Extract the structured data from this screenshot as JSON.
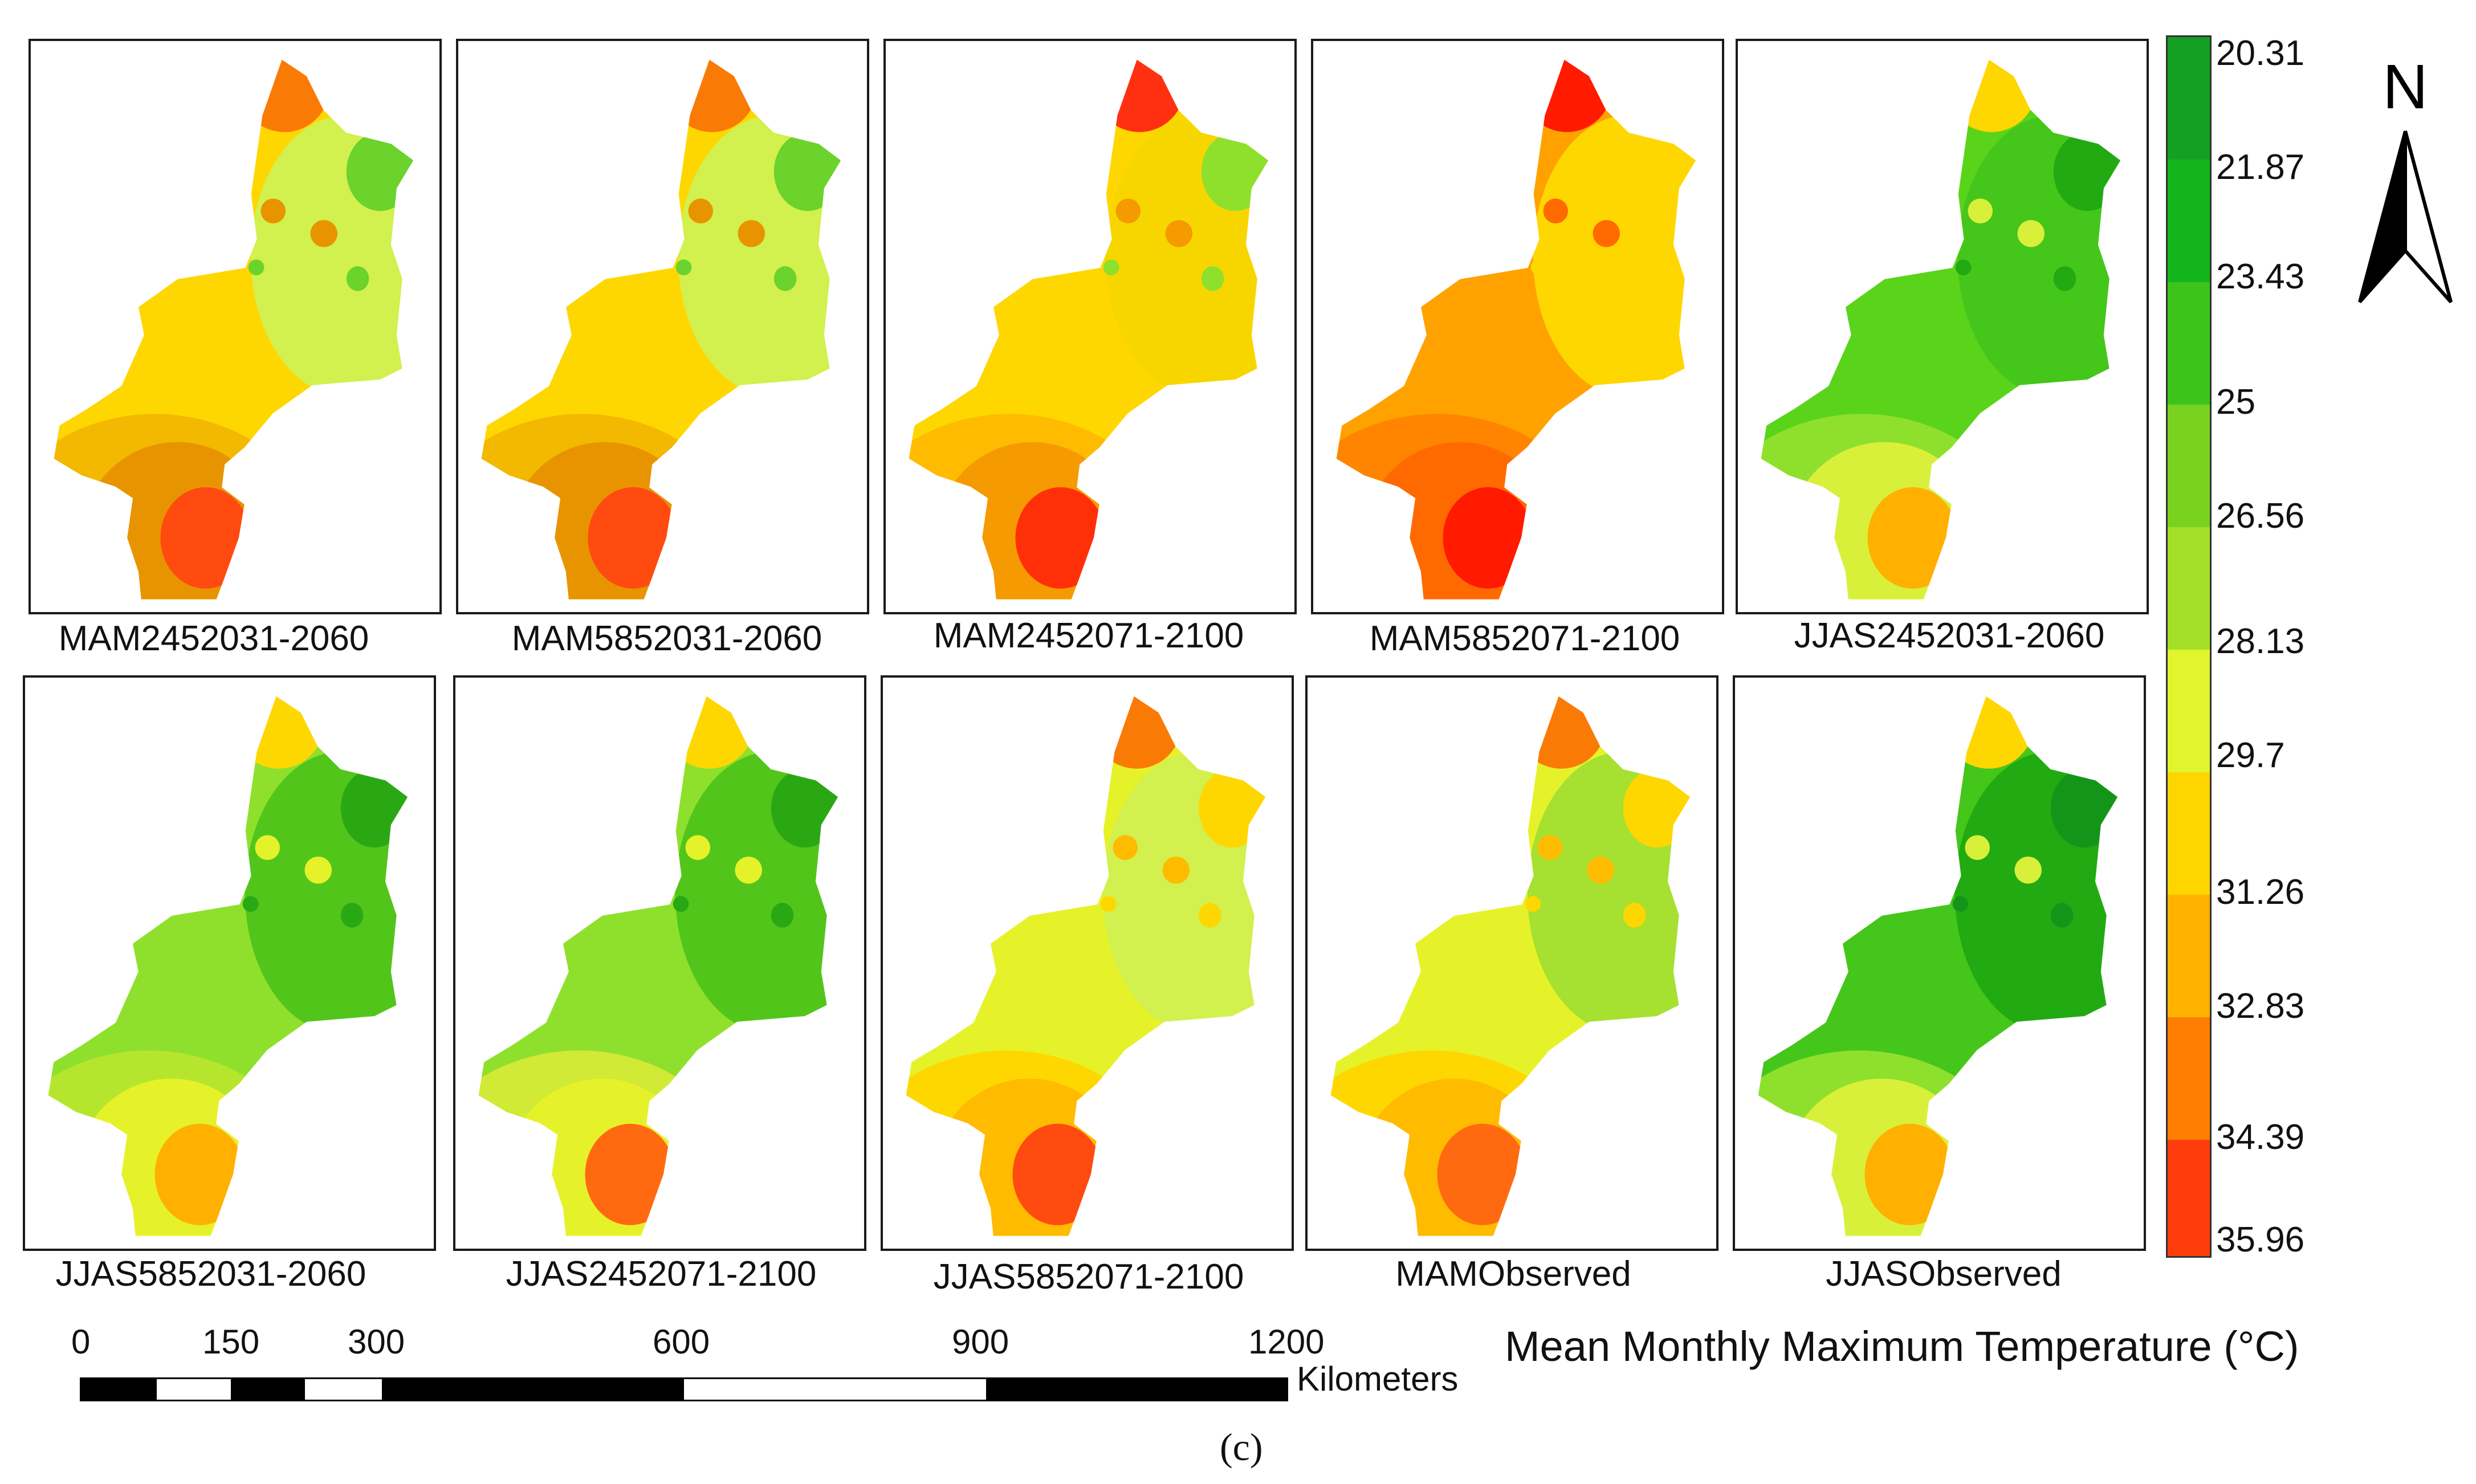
{
  "panels": [
    {
      "label": "MAM2452031-2060",
      "zones": [
        "#ffd700",
        "#f3b800",
        "#e89400",
        "#ff4a10",
        "#fa7a06",
        "#d2f04e",
        "#6cd22c"
      ]
    },
    {
      "label": "MAM5852031-2060",
      "zones": [
        "#ffd700",
        "#f3b800",
        "#e89400",
        "#ff4a10",
        "#fa7a06",
        "#d2f04e",
        "#6cd22c"
      ]
    },
    {
      "label": "MAM2452071-2100",
      "zones": [
        "#ffd700",
        "#ffbb00",
        "#f59a00",
        "#ff3008",
        "#ff3010",
        "#f7d600",
        "#8fe02d"
      ]
    },
    {
      "label": "MAM5852071-2100",
      "zones": [
        "#ffa200",
        "#ff8500",
        "#ff6a00",
        "#ff1a00",
        "#ff1a00",
        "#ffd700",
        "#ffd700"
      ]
    },
    {
      "label": "JJAS2452031-2060",
      "zones": [
        "#5ad41a",
        "#8fe02d",
        "#d9f03a",
        "#ffb000",
        "#ffd700",
        "#45c61a",
        "#22aa12"
      ]
    },
    {
      "label": "JJAS5852031-2060",
      "zones": [
        "#8fe02d",
        "#b5e62d",
        "#e6f229",
        "#ffb000",
        "#ffd700",
        "#52c51b",
        "#2aa814"
      ]
    },
    {
      "label": "JJAS2452071-2100",
      "zones": [
        "#8fe02d",
        "#d0ea35",
        "#e6f229",
        "#ff6a10",
        "#ffd700",
        "#52c51b",
        "#2aa814"
      ]
    },
    {
      "label": "JJAS5852071-2100",
      "zones": [
        "#e6f229",
        "#ffd700",
        "#ffbb00",
        "#ff4a10",
        "#fa7a06",
        "#d2f04e",
        "#ffd700"
      ]
    },
    {
      "label": "MAMObserved",
      "zones": [
        "#e6f229",
        "#ffd700",
        "#ffbb00",
        "#ff6a10",
        "#fa7a06",
        "#a6e030",
        "#ffd700"
      ]
    },
    {
      "label": "JJASObserved",
      "zones": [
        "#45c61a",
        "#8fe02d",
        "#d9f03a",
        "#ffb000",
        "#ffd700",
        "#22aa12",
        "#14951a"
      ]
    }
  ],
  "legend": {
    "title": "Mean Monthly Maximum Temperature (°C)",
    "ticks": [
      "20.31",
      "21.87",
      "23.43",
      "25",
      "26.56",
      "28.13",
      "29.7",
      "31.26",
      "32.83",
      "34.39",
      "35.96"
    ],
    "colors": [
      "#13a023",
      "#12b51c",
      "#3cc41b",
      "#79d21f",
      "#a4e027",
      "#e0f52d",
      "#ffd500",
      "#ffb300",
      "#ff7d00",
      "#ff3c0c",
      "#ff0000"
    ]
  },
  "north_label": "N",
  "scale": {
    "ticks": [
      "0",
      "150",
      "300",
      "600",
      "900",
      "1200"
    ],
    "unit": "Kilometers"
  },
  "caption": "(c)"
}
